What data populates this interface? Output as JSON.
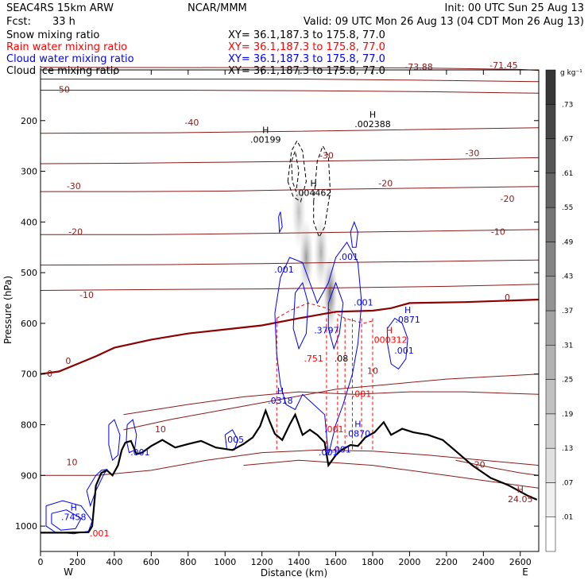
{
  "header": {
    "model": "SEAC4RS 15km ARW",
    "org": "NCAR/MMM",
    "init": "Init: 00 UTC Sun 25 Aug 13",
    "fcst": "Fcst:",
    "fcst_value": "33 h",
    "valid": "Valid: 09 UTC Mon 26 Aug 13 (04 CDT Mon 26 Aug 13)"
  },
  "fields": [
    {
      "name": "Snow mixing ratio",
      "xy": "XY=  36.1,187.3 to 175.8, 77.0",
      "color": "#000000"
    },
    {
      "name": "Rain water mixing ratio",
      "xy": "XY=  36.1,187.3 to 175.8, 77.0",
      "color": "#ff0000"
    },
    {
      "name": "Cloud water mixing ratio",
      "xy": "XY=  36.1,187.3 to 175.8, 77.0",
      "color": "#0000ff"
    },
    {
      "name": "Cloud ice mixing ratio",
      "xy": "XY=  36.1,187.3 to 175.8, 77.0",
      "color": "#000000"
    }
  ],
  "colors": {
    "temperature": "#8b1a1a",
    "freezing": "#8b0000",
    "cloud_water": "#0000ff",
    "rain": "#ff0000",
    "terrain": "#000000"
  },
  "chart_data": {
    "type": "cross-section",
    "xlabel": "Distance (km)",
    "ylabel": "Pressure (hPa)",
    "x_ticks": [
      0,
      200,
      400,
      600,
      800,
      1000,
      1200,
      1400,
      1600,
      1800,
      2000,
      2200,
      2400,
      2600
    ],
    "y_ticks": [
      200,
      300,
      400,
      500,
      600,
      700,
      800,
      900,
      1000
    ],
    "xlim": [
      0,
      2700
    ],
    "ylim": [
      1050,
      100
    ],
    "west_label": "W",
    "east_label": "E",
    "colorbar": {
      "unit": "g kg⁻¹",
      "ticks": [
        ".01",
        ".07",
        ".13",
        ".19",
        ".25",
        ".31",
        ".37",
        ".43",
        ".49",
        ".55",
        ".61",
        ".67",
        ".73"
      ]
    },
    "terrain": [
      [
        0,
        1013
      ],
      [
        130,
        1013
      ],
      [
        260,
        1012
      ],
      [
        280,
        1000
      ],
      [
        300,
        920
      ],
      [
        330,
        895
      ],
      [
        360,
        890
      ],
      [
        390,
        900
      ],
      [
        420,
        880
      ],
      [
        440,
        850
      ],
      [
        460,
        835
      ],
      [
        490,
        832
      ],
      [
        520,
        858
      ],
      [
        550,
        855
      ],
      [
        600,
        842
      ],
      [
        660,
        830
      ],
      [
        730,
        845
      ],
      [
        800,
        838
      ],
      [
        870,
        832
      ],
      [
        950,
        845
      ],
      [
        1040,
        850
      ],
      [
        1100,
        838
      ],
      [
        1150,
        825
      ],
      [
        1190,
        803
      ],
      [
        1220,
        772
      ],
      [
        1240,
        792
      ],
      [
        1270,
        818
      ],
      [
        1310,
        830
      ],
      [
        1350,
        800
      ],
      [
        1380,
        780
      ],
      [
        1420,
        820
      ],
      [
        1460,
        810
      ],
      [
        1500,
        820
      ],
      [
        1540,
        835
      ],
      [
        1560,
        880
      ],
      [
        1600,
        860
      ],
      [
        1630,
        850
      ],
      [
        1680,
        840
      ],
      [
        1720,
        842
      ],
      [
        1760,
        825
      ],
      [
        1810,
        815
      ],
      [
        1860,
        795
      ],
      [
        1900,
        820
      ],
      [
        1960,
        808
      ],
      [
        2020,
        815
      ],
      [
        2100,
        820
      ],
      [
        2180,
        830
      ],
      [
        2260,
        855
      ],
      [
        2340,
        880
      ],
      [
        2440,
        905
      ],
      [
        2540,
        920
      ],
      [
        2640,
        940
      ],
      [
        2690,
        948
      ]
    ],
    "temperature_isotherms": [
      {
        "value": -71.45,
        "label": "-71.45",
        "points": [
          [
            0,
            95
          ],
          [
            2000,
            96
          ],
          [
            2600,
            99
          ],
          [
            2700,
            101
          ]
        ]
      },
      {
        "value": -60,
        "points": [
          [
            0,
            118
          ],
          [
            1400,
            118
          ],
          [
            2000,
            120
          ],
          [
            2700,
            123
          ]
        ]
      },
      {
        "value": -50,
        "label": "-50",
        "points": [
          [
            0,
            140
          ],
          [
            800,
            140
          ],
          [
            1500,
            141
          ],
          [
            2100,
            143
          ],
          [
            2700,
            146
          ]
        ]
      },
      {
        "value": -40,
        "label": "-40",
        "points": [
          [
            0,
            225
          ],
          [
            700,
            224
          ],
          [
            1200,
            222
          ],
          [
            1800,
            219
          ],
          [
            2700,
            214
          ]
        ]
      },
      {
        "value": -30,
        "label": "-30",
        "points": [
          [
            0,
            285
          ],
          [
            500,
            284
          ],
          [
            1000,
            282
          ],
          [
            1500,
            280
          ],
          [
            2100,
            277
          ],
          [
            2700,
            273
          ]
        ]
      },
      {
        "value": -20,
        "label": "-20",
        "points": [
          [
            0,
            340
          ],
          [
            500,
            340
          ],
          [
            1000,
            339
          ],
          [
            1500,
            336
          ],
          [
            2100,
            333
          ],
          [
            2700,
            330
          ]
        ]
      },
      {
        "value": -10,
        "label": "-10",
        "points": [
          [
            0,
            425
          ],
          [
            600,
            425
          ],
          [
            1100,
            423
          ],
          [
            1500,
            421
          ],
          [
            2100,
            418
          ],
          [
            2700,
            415
          ]
        ]
      },
      {
        "value": -5,
        "points": [
          [
            0,
            485
          ],
          [
            700,
            484
          ],
          [
            1200,
            482
          ],
          [
            1600,
            480
          ],
          [
            2100,
            478
          ],
          [
            2700,
            475
          ]
        ]
      },
      {
        "value": -2,
        "points": [
          [
            0,
            535
          ],
          [
            700,
            533
          ],
          [
            1200,
            532
          ],
          [
            1600,
            530
          ],
          [
            2200,
            527
          ],
          [
            2700,
            523
          ]
        ]
      },
      {
        "value": 0,
        "label": "0",
        "freezing": true,
        "points": [
          [
            0,
            700
          ],
          [
            100,
            695
          ],
          [
            200,
            680
          ],
          [
            300,
            665
          ],
          [
            400,
            648
          ],
          [
            600,
            632
          ],
          [
            800,
            620
          ],
          [
            1000,
            612
          ],
          [
            1200,
            604
          ],
          [
            1400,
            590
          ],
          [
            1600,
            577
          ],
          [
            1800,
            575
          ],
          [
            1900,
            570
          ],
          [
            2000,
            560
          ],
          [
            2300,
            558
          ],
          [
            2700,
            553
          ]
        ]
      },
      {
        "value": 10,
        "label": "10",
        "points": [
          [
            450,
            810
          ],
          [
            700,
            790
          ],
          [
            1000,
            770
          ],
          [
            1300,
            750
          ],
          [
            1600,
            730
          ],
          [
            1900,
            720
          ],
          [
            2200,
            710
          ],
          [
            2700,
            700
          ]
        ]
      },
      {
        "value": 10.5,
        "points": [
          [
            450,
            780
          ],
          [
            800,
            760
          ],
          [
            1100,
            745
          ],
          [
            1400,
            735
          ],
          [
            1700,
            740
          ],
          [
            2000,
            735
          ],
          [
            2300,
            735
          ],
          [
            2700,
            740
          ]
        ]
      },
      {
        "value": 15,
        "points": [
          [
            0,
            900
          ],
          [
            300,
            900
          ],
          [
            600,
            890
          ],
          [
            900,
            870
          ],
          [
            1200,
            855
          ],
          [
            1500,
            850
          ],
          [
            1800,
            852
          ],
          [
            2100,
            860
          ],
          [
            2400,
            870
          ],
          [
            2700,
            880
          ]
        ]
      },
      {
        "value": 20,
        "label": "20",
        "points": [
          [
            2250,
            870
          ],
          [
            2450,
            885
          ],
          [
            2600,
            895
          ],
          [
            2700,
            900
          ]
        ]
      },
      {
        "value": 22,
        "points": [
          [
            1100,
            880
          ],
          [
            1400,
            870
          ],
          [
            1800,
            880
          ],
          [
            2200,
            900
          ],
          [
            2600,
            920
          ],
          [
            2700,
            925
          ]
        ]
      }
    ],
    "contour_labels": [
      {
        "text": "-50",
        "x": 120,
        "p": 145,
        "color": "temperature"
      },
      {
        "text": "-40",
        "x": 820,
        "p": 210,
        "color": "temperature"
      },
      {
        "text": "-30",
        "x": 1550,
        "p": 275,
        "color": "temperature"
      },
      {
        "text": "-30",
        "x": 2340,
        "p": 270,
        "color": "temperature"
      },
      {
        "text": "-30",
        "x": 180,
        "p": 335,
        "color": "temperature"
      },
      {
        "text": "-20",
        "x": 1870,
        "p": 330,
        "color": "temperature"
      },
      {
        "text": "-20",
        "x": 2530,
        "p": 360,
        "color": "temperature"
      },
      {
        "text": "-20",
        "x": 190,
        "p": 425,
        "color": "temperature"
      },
      {
        "text": "-10",
        "x": 2480,
        "p": 425,
        "color": "temperature"
      },
      {
        "text": "-10",
        "x": 250,
        "p": 550,
        "color": "temperature"
      },
      {
        "text": "0",
        "x": 150,
        "p": 680,
        "color": "temperature"
      },
      {
        "text": "0",
        "x": 2530,
        "p": 555,
        "color": "temperature"
      },
      {
        "text": "0",
        "x": 50,
        "p": 705,
        "color": "temperature"
      },
      {
        "text": "10",
        "x": 1800,
        "p": 700,
        "color": "temperature"
      },
      {
        "text": "10",
        "x": 650,
        "p": 815,
        "color": "temperature"
      },
      {
        "text": "10",
        "x": 170,
        "p": 880,
        "color": "temperature"
      },
      {
        "text": "20",
        "x": 2380,
        "p": 885,
        "color": "temperature"
      },
      {
        "text": "-73.88",
        "x": 2050,
        "p": 100,
        "color": "temperature"
      },
      {
        "text": "-71.45",
        "x": 2510,
        "p": 97,
        "color": "temperature"
      }
    ],
    "extrema": [
      {
        "type": "H",
        "value": ".00199",
        "x": 1220,
        "p": 240,
        "color": "terrain"
      },
      {
        "type": "H",
        "value": ".002388",
        "x": 1800,
        "p": 210,
        "color": "terrain"
      },
      {
        "type": "H",
        "value": ".004462",
        "x": 1480,
        "p": 345,
        "color": "terrain"
      },
      {
        "type": "H",
        "value": ".0871",
        "x": 1990,
        "p": 595,
        "color": "cloud_water"
      },
      {
        "type": "H",
        "value": ".000312",
        "x": 1890,
        "p": 635,
        "color": "rain"
      },
      {
        "type": "H",
        "value": ".0318",
        "x": 1300,
        "p": 755,
        "color": "cloud_water"
      },
      {
        "type": "H",
        "value": ".0870",
        "x": 1720,
        "p": 820,
        "color": "cloud_water"
      },
      {
        "type": "H",
        "value": ".7458",
        "x": 180,
        "p": 985,
        "color": "cloud_water"
      },
      {
        "type": "H",
        "value": "24.05",
        "x": 2600,
        "p": 950,
        "color": "temperature"
      }
    ],
    "cloud_water_labels": [
      {
        "text": ".001",
        "x": 1320,
        "p": 500,
        "color": "cloud_water"
      },
      {
        "text": ".001",
        "x": 1670,
        "p": 475,
        "color": "cloud_water"
      },
      {
        "text": ".001",
        "x": 1750,
        "p": 565,
        "color": "cloud_water"
      },
      {
        "text": ".001",
        "x": 1970,
        "p": 660,
        "color": "cloud_water"
      },
      {
        "text": ".3797",
        "x": 1550,
        "p": 620,
        "color": "cloud_water"
      },
      {
        "text": ".751",
        "x": 1480,
        "p": 675,
        "color": "rain"
      },
      {
        "text": ".08",
        "x": 1630,
        "p": 675,
        "color": "terrain"
      },
      {
        "text": ".001",
        "x": 1740,
        "p": 745,
        "color": "rain"
      },
      {
        "text": ".001",
        "x": 1590,
        "p": 815,
        "color": "rain"
      },
      {
        "text": ".001",
        "x": 1560,
        "p": 860,
        "color": "cloud_water"
      },
      {
        "text": ".001",
        "x": 540,
        "p": 860,
        "color": "cloud_water"
      },
      {
        "text": ".005",
        "x": 1050,
        "p": 835,
        "color": "cloud_water"
      },
      {
        "text": ".001",
        "x": 1630,
        "p": 855,
        "color": "cloud_water"
      },
      {
        "text": ".001",
        "x": 320,
        "p": 1020,
        "color": "rain"
      }
    ],
    "snow_shading": [
      {
        "x": 1400,
        "p": 380,
        "intensity": 0.35
      },
      {
        "x": 1440,
        "p": 470,
        "intensity": 0.55
      },
      {
        "x": 1520,
        "p": 460,
        "intensity": 0.45
      },
      {
        "x": 1570,
        "p": 540,
        "intensity": 0.8
      }
    ],
    "rain_dashed_columns": [
      1280,
      1550,
      1610,
      1650,
      1690,
      1740,
      1800
    ]
  }
}
